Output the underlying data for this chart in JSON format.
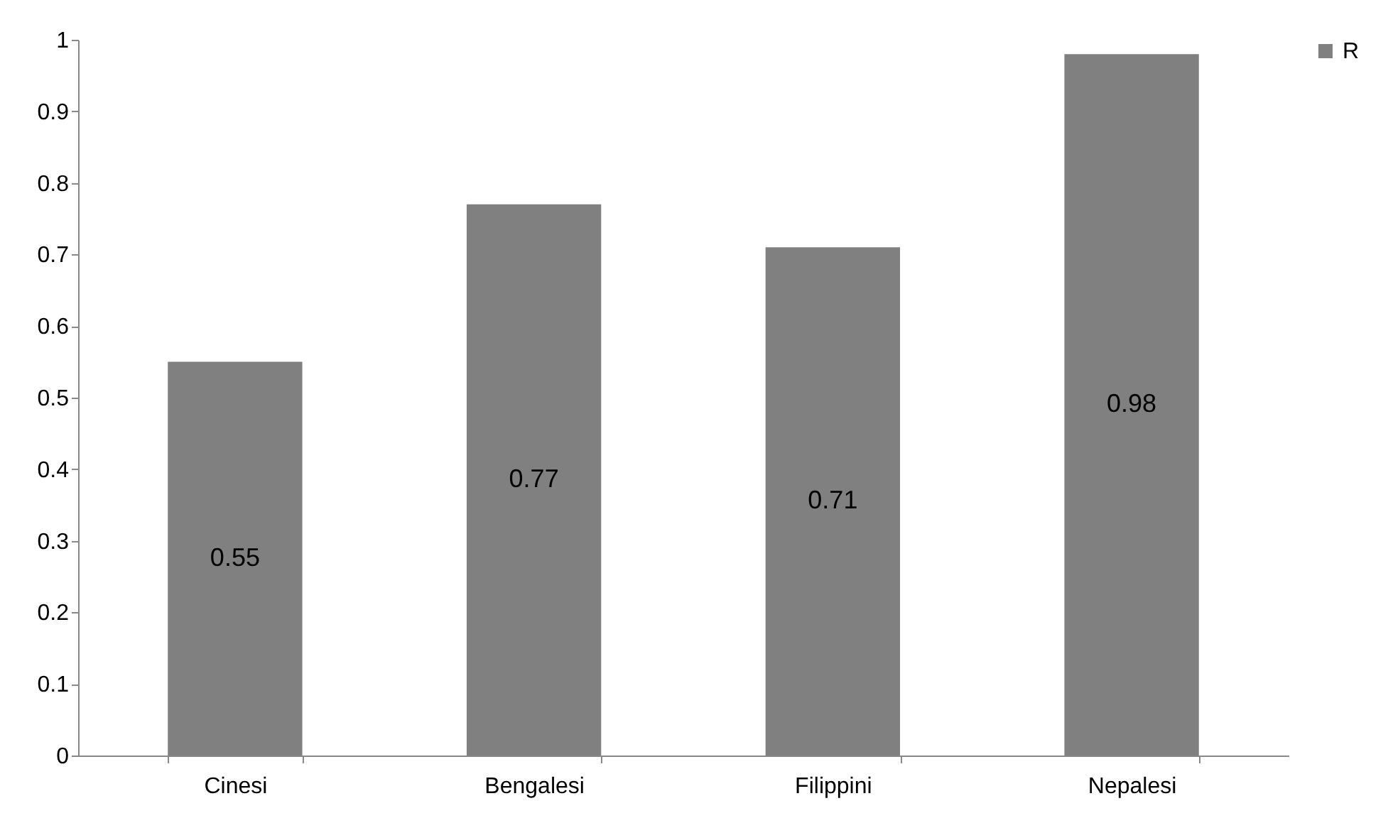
{
  "chart_data": {
    "type": "bar",
    "categories": [
      "Cinesi",
      "Bengalesi",
      "Filippini",
      "Nepalesi"
    ],
    "series": [
      {
        "name": "R",
        "color": "#808080",
        "values": [
          0.55,
          0.77,
          0.71,
          0.98
        ]
      }
    ],
    "ylim": [
      0,
      1
    ],
    "yticks": [
      0,
      0.1,
      0.2,
      0.3,
      0.4,
      0.5,
      0.6,
      0.7,
      0.8,
      0.9,
      1
    ],
    "data_labels": true,
    "legend": "right",
    "grid": false
  }
}
